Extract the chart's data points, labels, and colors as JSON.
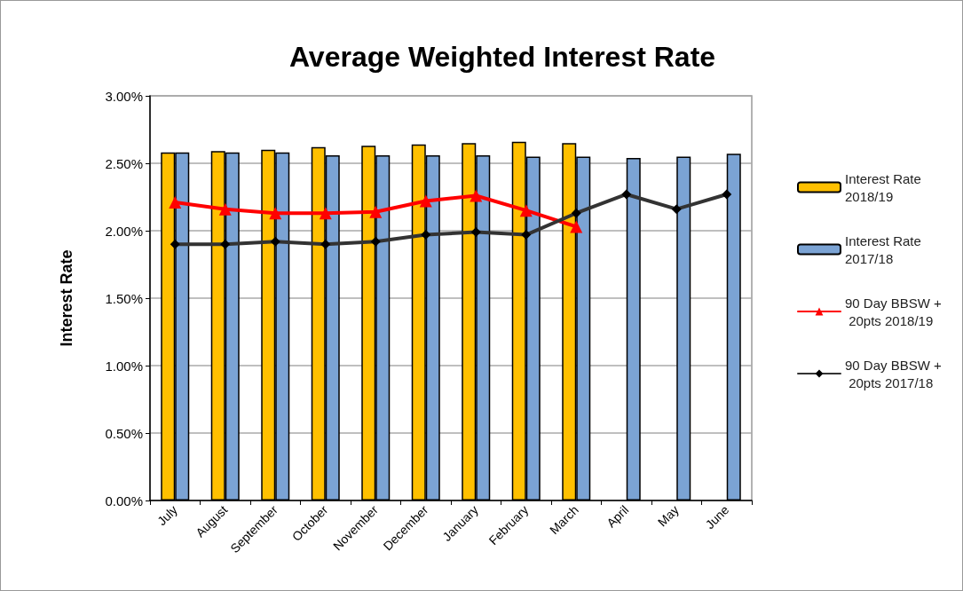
{
  "chart_data": {
    "type": "bar",
    "title": "Average Weighted Interest Rate",
    "ylabel": "Interest Rate",
    "categories": [
      "July",
      "August",
      "September",
      "October",
      "November",
      "December",
      "January",
      "February",
      "March",
      "April",
      "May",
      "June"
    ],
    "series": [
      {
        "name": "Interest Rate 2018/19",
        "color": "#ffc000",
        "values": [
          2.58,
          2.59,
          2.6,
          2.62,
          2.63,
          2.64,
          2.65,
          2.66,
          2.65,
          null,
          null,
          null
        ]
      },
      {
        "name": "Interest Rate 2017/18",
        "color": "#7ba3d4",
        "values": [
          2.58,
          2.58,
          2.58,
          2.56,
          2.56,
          2.56,
          2.56,
          2.55,
          2.55,
          2.54,
          2.55,
          2.57
        ]
      },
      {
        "name": "90 Day BBSW + 20pts 2018/19",
        "type": "line",
        "color": "#ff0000",
        "marker": "triangle",
        "values": [
          2.21,
          2.16,
          2.13,
          2.13,
          2.14,
          2.22,
          2.26,
          2.15,
          2.03,
          null,
          null,
          null
        ]
      },
      {
        "name": "90 Day BBSW + 20pts 2017/18",
        "type": "line",
        "color": "#333333",
        "marker": "diamond",
        "values": [
          1.9,
          1.9,
          1.92,
          1.9,
          1.92,
          1.97,
          1.99,
          1.97,
          2.13,
          2.27,
          2.16,
          2.27
        ]
      }
    ],
    "ylim": [
      0,
      3
    ],
    "yticks": [
      {
        "value": 0,
        "label": "0.00%"
      },
      {
        "value": 0.5,
        "label": "0.50%"
      },
      {
        "value": 1,
        "label": "1.00%"
      },
      {
        "value": 1.5,
        "label": "1.50%"
      },
      {
        "value": 2,
        "label": "2.00%"
      },
      {
        "value": 2.5,
        "label": "2.50%"
      },
      {
        "value": 3,
        "label": "3.00%"
      }
    ],
    "grid": "y",
    "legend": "right",
    "line_style": "solid"
  }
}
